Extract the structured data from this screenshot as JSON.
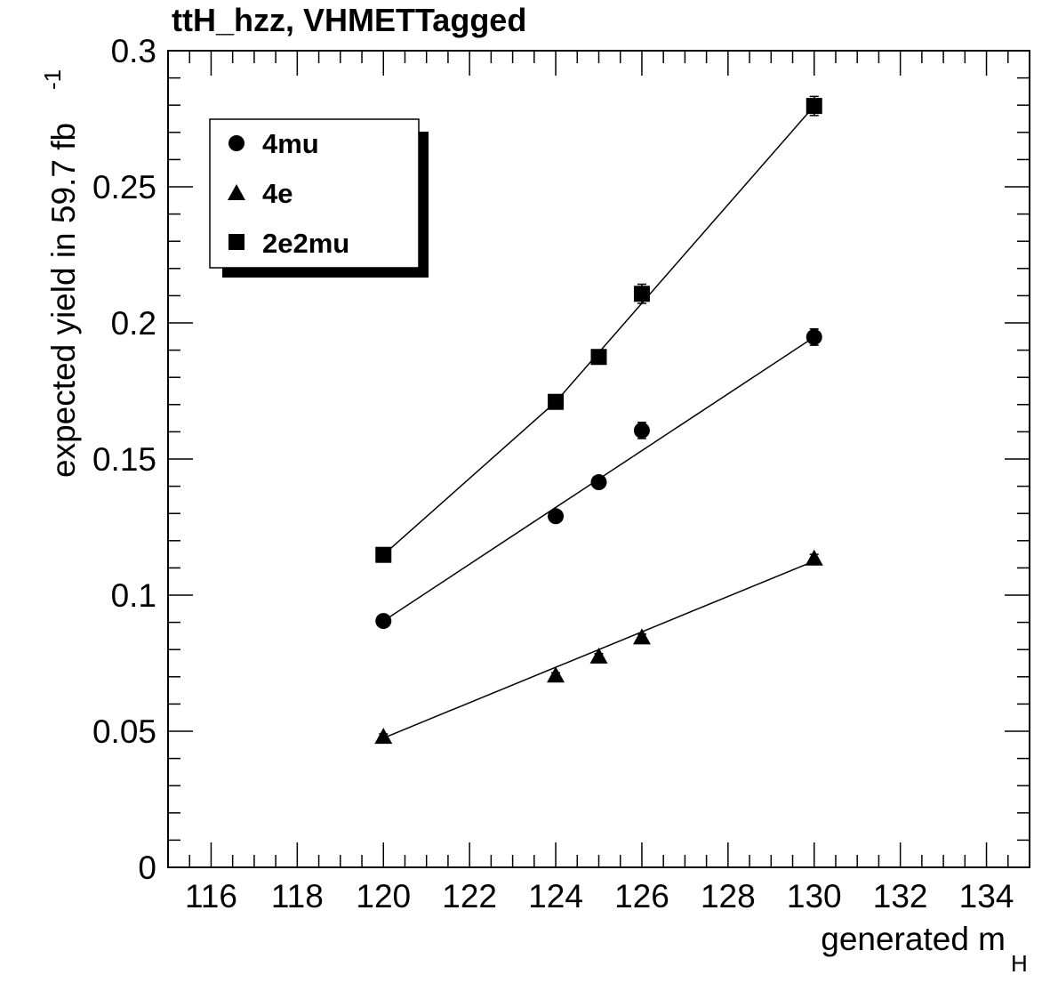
{
  "chart_data": {
    "type": "scatter",
    "title": "ttH_hzz, VHMETTagged",
    "xlabel": {
      "main": "generated m",
      "sub": "H"
    },
    "ylabel": {
      "main": "expected yield in 59.7 fb",
      "sup": "-1"
    },
    "xlim": [
      115,
      135
    ],
    "ylim": [
      0,
      0.3
    ],
    "x_ticks": [
      116,
      118,
      120,
      122,
      124,
      126,
      128,
      130,
      132,
      134
    ],
    "x_tick_labels": [
      "116",
      "118",
      "120",
      "122",
      "124",
      "126",
      "128",
      "130",
      "132",
      "134"
    ],
    "y_ticks": [
      0,
      0.05,
      0.1,
      0.15,
      0.2,
      0.25,
      0.3
    ],
    "y_tick_labels": [
      "0",
      "0.05",
      "0.1",
      "0.15",
      "0.2",
      "0.25",
      "0.3"
    ],
    "grid": false,
    "legend_position": "top-left",
    "series": [
      {
        "name": "4mu",
        "marker": "circle",
        "color": "#000000",
        "x": [
          120,
          124,
          125,
          126,
          130
        ],
        "y": [
          0.0905,
          0.129,
          0.1415,
          0.1605,
          0.1948
        ],
        "err": [
          0.0015,
          0.0015,
          0.0018,
          0.003,
          0.003
        ],
        "fit": {
          "x": [
            120,
            130
          ],
          "y": [
            0.0905,
            0.1948
          ]
        }
      },
      {
        "name": "4e",
        "marker": "triangle",
        "color": "#000000",
        "x": [
          120,
          124,
          125,
          126,
          130
        ],
        "y": [
          0.048,
          0.0705,
          0.0775,
          0.0845,
          0.1135
        ],
        "err": [
          0.001,
          0.001,
          0.001,
          0.0012,
          0.0015
        ],
        "fit": {
          "x": [
            120,
            130
          ],
          "y": [
            0.0475,
            0.1125
          ]
        }
      },
      {
        "name": "2e2mu",
        "marker": "square",
        "color": "#000000",
        "x": [
          120,
          124,
          125,
          126,
          130
        ],
        "y": [
          0.1148,
          0.171,
          0.1875,
          0.2107,
          0.2797
        ],
        "err": [
          0.0015,
          0.002,
          0.0025,
          0.0035,
          0.0035
        ],
        "fit": {
          "x": [
            120,
            124,
            130
          ],
          "y": [
            0.1148,
            0.171,
            0.2797
          ]
        }
      }
    ]
  }
}
